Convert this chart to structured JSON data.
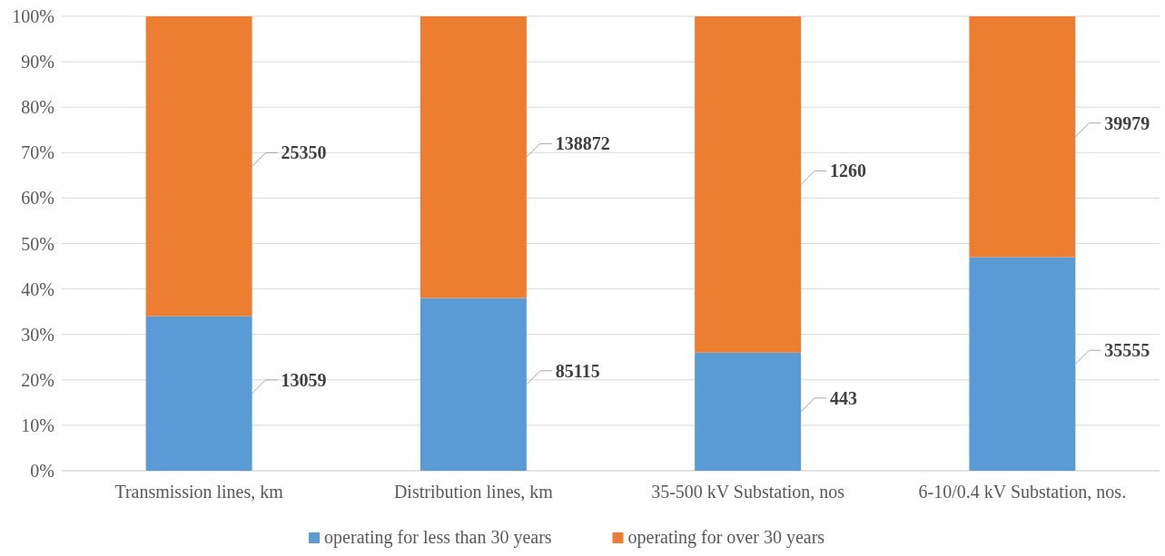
{
  "chart_data": {
    "type": "bar",
    "stacked": true,
    "categories": [
      "Transmission lines, km",
      "Distribution lines, km",
      "35-500 kV Substation, nos",
      "6-10/0.4 kV Substation, nos."
    ],
    "series": [
      {
        "name": "operating for less than 30 years",
        "color": "#5b9bd5",
        "values": [
          34,
          38,
          26,
          47
        ]
      },
      {
        "name": "operating for over 30 years",
        "color": "#ed7d31",
        "values": [
          66,
          62,
          74,
          53
        ]
      }
    ],
    "annotations": [
      "13059",
      "85115",
      "443",
      "35555",
      "25350",
      "138872",
      "1260",
      "39979"
    ],
    "ylim": [
      0,
      100
    ],
    "yticks": [
      {
        "value": 0,
        "label": "0%"
      },
      {
        "value": 10,
        "label": "10%"
      },
      {
        "value": 20,
        "label": "20%"
      },
      {
        "value": 30,
        "label": "30%"
      },
      {
        "value": 40,
        "label": "40%"
      },
      {
        "value": 50,
        "label": "50%"
      },
      {
        "value": 60,
        "label": "60%"
      },
      {
        "value": 70,
        "label": "70%"
      },
      {
        "value": 80,
        "label": "80%"
      },
      {
        "value": 90,
        "label": "90%"
      },
      {
        "value": 100,
        "label": "100%"
      }
    ],
    "grid": "y",
    "legend": "bottom"
  }
}
